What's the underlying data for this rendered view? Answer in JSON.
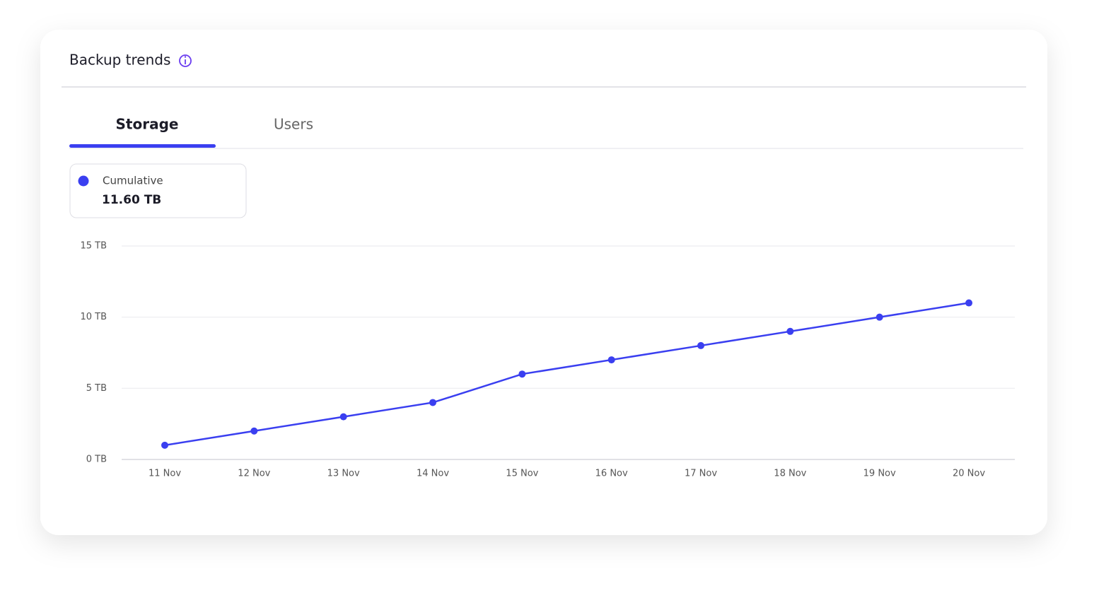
{
  "header": {
    "title": "Backup trends"
  },
  "tabs": [
    "Storage",
    "Users"
  ],
  "active_tab": 0,
  "summary": {
    "value": "11.60 TB"
  },
  "chart_data": {
    "type": "line",
    "categories": [
      "11 Nov",
      "12 Nov",
      "13 Nov",
      "14 Nov",
      "15 Nov",
      "16 Nov",
      "17 Nov",
      "18 Nov",
      "19 Nov",
      "20 Nov"
    ],
    "series": [
      {
        "name": "Cumulative",
        "color": "#3a3ff0",
        "values": [
          1,
          2,
          3,
          4,
          6,
          7,
          8,
          9,
          10,
          11
        ]
      }
    ],
    "ylim": [
      0,
      15
    ],
    "yticks": [
      {
        "value": 0,
        "label": "0 TB"
      },
      {
        "value": 5,
        "label": "5 TB"
      },
      {
        "value": 10,
        "label": "10 TB"
      },
      {
        "value": 15,
        "label": "15 TB"
      }
    ],
    "grid": true
  }
}
